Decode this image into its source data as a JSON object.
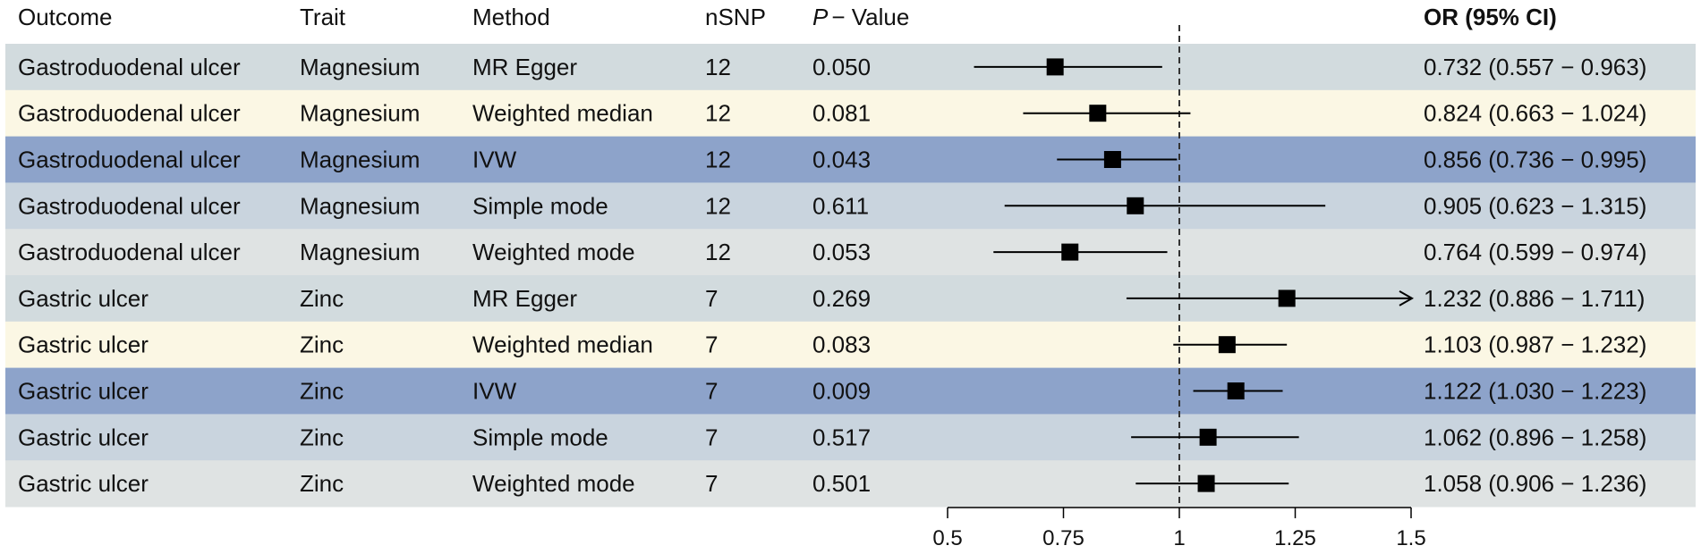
{
  "chart_data": {
    "type": "forest",
    "headers": {
      "outcome": "Outcome",
      "trait": "Trait",
      "method": "Method",
      "nsnp": "nSNP",
      "p_italic": "P",
      "p_rest": "− Value",
      "or_ci": "OR (95% CI)"
    },
    "rows": [
      {
        "outcome": "Gastroduodenal ulcer",
        "trait": "Magnesium",
        "method": "MR Egger",
        "nsnp": "12",
        "p": "0.050",
        "or_text": "0.732 (0.557 − 0.963)",
        "or": 0.732,
        "lo": 0.557,
        "hi": 0.963,
        "arrow": false,
        "band": "#d2dbde"
      },
      {
        "outcome": "Gastroduodenal ulcer",
        "trait": "Magnesium",
        "method": "Weighted median",
        "nsnp": "12",
        "p": "0.081",
        "or_text": "0.824 (0.663 − 1.024)",
        "or": 0.824,
        "lo": 0.663,
        "hi": 1.024,
        "arrow": false,
        "band": "#fbf7e4"
      },
      {
        "outcome": "Gastroduodenal ulcer",
        "trait": "Magnesium",
        "method": "IVW",
        "nsnp": "12",
        "p": "0.043",
        "or_text": "0.856 (0.736 − 0.995)",
        "or": 0.856,
        "lo": 0.736,
        "hi": 0.995,
        "arrow": false,
        "band": "#8da3ca"
      },
      {
        "outcome": "Gastroduodenal ulcer",
        "trait": "Magnesium",
        "method": "Simple mode",
        "nsnp": "12",
        "p": "0.611",
        "or_text": "0.905 (0.623 − 1.315)",
        "or": 0.905,
        "lo": 0.623,
        "hi": 1.315,
        "arrow": false,
        "band": "#c9d4de"
      },
      {
        "outcome": "Gastroduodenal ulcer",
        "trait": "Magnesium",
        "method": "Weighted mode",
        "nsnp": "12",
        "p": "0.053",
        "or_text": "0.764 (0.599 − 0.974)",
        "or": 0.764,
        "lo": 0.599,
        "hi": 0.974,
        "arrow": false,
        "band": "#dfe3e3"
      },
      {
        "outcome": "Gastric ulcer",
        "trait": "Zinc",
        "method": "MR Egger",
        "nsnp": "7",
        "p": "0.269",
        "or_text": "1.232 (0.886 − 1.711)",
        "or": 1.232,
        "lo": 0.886,
        "hi": 1.711,
        "arrow": true,
        "band": "#d2dbde"
      },
      {
        "outcome": "Gastric ulcer",
        "trait": "Zinc",
        "method": "Weighted median",
        "nsnp": "7",
        "p": "0.083",
        "or_text": "1.103 (0.987 − 1.232)",
        "or": 1.103,
        "lo": 0.987,
        "hi": 1.232,
        "arrow": false,
        "band": "#fbf7e4"
      },
      {
        "outcome": "Gastric ulcer",
        "trait": "Zinc",
        "method": "IVW",
        "nsnp": "7",
        "p": "0.009",
        "or_text": "1.122 (1.030 − 1.223)",
        "or": 1.122,
        "lo": 1.03,
        "hi": 1.223,
        "arrow": false,
        "band": "#8da3ca"
      },
      {
        "outcome": "Gastric ulcer",
        "trait": "Zinc",
        "method": "Simple mode",
        "nsnp": "7",
        "p": "0.517",
        "or_text": "1.062 (0.896 − 1.258)",
        "or": 1.062,
        "lo": 0.896,
        "hi": 1.258,
        "arrow": false,
        "band": "#c9d4de"
      },
      {
        "outcome": "Gastric ulcer",
        "trait": "Zinc",
        "method": "Weighted mode",
        "nsnp": "7",
        "p": "0.501",
        "or_text": "1.058 (0.906 − 1.236)",
        "or": 1.058,
        "lo": 0.906,
        "hi": 1.236,
        "arrow": false,
        "band": "#dfe3e3"
      }
    ],
    "x_axis": {
      "range": [
        0.5,
        1.5
      ],
      "ticks": [
        0.5,
        0.75,
        1,
        1.25,
        1.5
      ],
      "tick_labels": [
        "0.5",
        "0.75",
        "1",
        "1.25",
        "1.5"
      ]
    },
    "reference_line": 1,
    "colors": {
      "marker": "#000000",
      "reference": "#333333"
    }
  }
}
